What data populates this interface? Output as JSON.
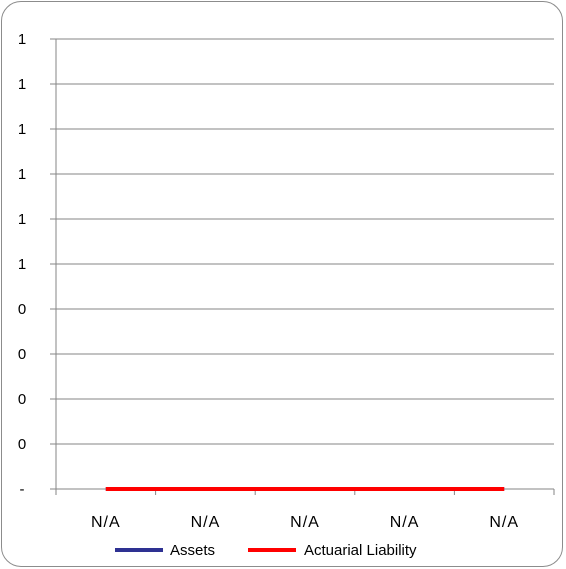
{
  "chart_data": {
    "type": "line",
    "title": "",
    "xlabel": "",
    "ylabel": "",
    "categories": [
      "N/A",
      "N/A",
      "N/A",
      "N/A",
      "N/A"
    ],
    "y_tick_labels": [
      "-",
      "0",
      "0",
      "0",
      "0",
      "1",
      "1",
      "1",
      "1",
      "1",
      "1"
    ],
    "ylim": [
      0,
      1
    ],
    "grid": true,
    "legend_position": "bottom",
    "series": [
      {
        "name": "Assets",
        "values": [
          0,
          0,
          0,
          0,
          0
        ],
        "color": "#2e3192"
      },
      {
        "name": "Actuarial Liability",
        "values": [
          0,
          0,
          0,
          0,
          0
        ],
        "color": "#ff0000"
      }
    ]
  }
}
